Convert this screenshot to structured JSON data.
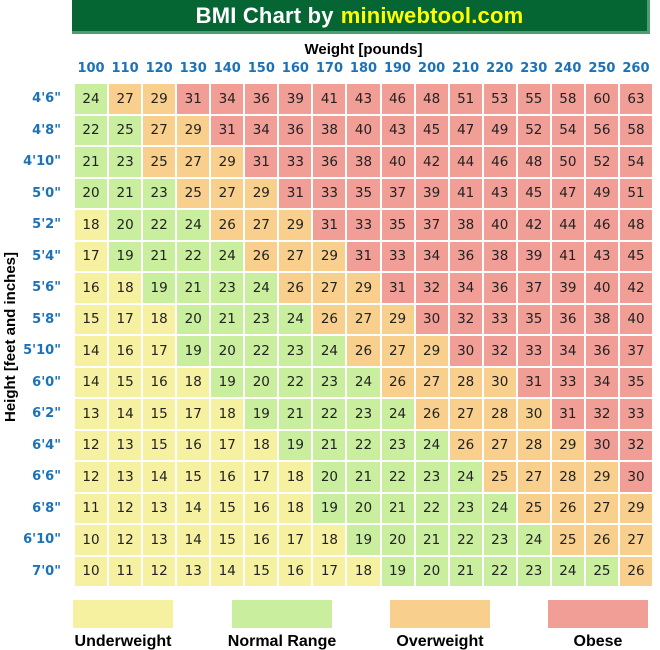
{
  "title": {
    "prefix": "BMI Chart by",
    "brand": "miniwebtool.com"
  },
  "axes": {
    "x_title": "Weight [pounds]",
    "y_title": "Height [feet and inches]"
  },
  "colors": {
    "title_bg": "#066633",
    "title_edge": "#4f9c74",
    "title_text": "#ffffff",
    "brand_text": "#ffff00",
    "header_text": "#1b72b8",
    "cell_text": "#222222"
  },
  "chart_data": {
    "type": "heatmap",
    "title": "BMI Chart by miniwebtool.com",
    "x_title": "Weight [pounds]",
    "y_title": "Height [feet and inches]",
    "columns": [
      100,
      110,
      120,
      130,
      140,
      150,
      160,
      170,
      180,
      190,
      200,
      210,
      220,
      230,
      240,
      250,
      260
    ],
    "rows": [
      "4'6\"",
      "4'8\"",
      "4'10\"",
      "5'0\"",
      "5'2\"",
      "5'4\"",
      "5'6\"",
      "5'8\"",
      "5'10\"",
      "6'0\"",
      "6'2\"",
      "6'4\"",
      "6'6\"",
      "6'8\"",
      "6'10\"",
      "7'0\""
    ],
    "values": [
      [
        24,
        27,
        29,
        31,
        34,
        36,
        39,
        41,
        43,
        46,
        48,
        51,
        53,
        55,
        58,
        60,
        63
      ],
      [
        22,
        25,
        27,
        29,
        31,
        34,
        36,
        38,
        40,
        43,
        45,
        47,
        49,
        52,
        54,
        56,
        58
      ],
      [
        21,
        23,
        25,
        27,
        29,
        31,
        33,
        36,
        38,
        40,
        42,
        44,
        46,
        48,
        50,
        52,
        54
      ],
      [
        20,
        21,
        23,
        25,
        27,
        29,
        31,
        33,
        35,
        37,
        39,
        41,
        43,
        45,
        47,
        49,
        51
      ],
      [
        18,
        20,
        22,
        24,
        26,
        27,
        29,
        31,
        33,
        35,
        37,
        38,
        40,
        42,
        44,
        46,
        48
      ],
      [
        17,
        19,
        21,
        22,
        24,
        26,
        27,
        29,
        31,
        33,
        34,
        36,
        38,
        39,
        41,
        43,
        45
      ],
      [
        16,
        18,
        19,
        21,
        23,
        24,
        26,
        27,
        29,
        31,
        32,
        34,
        36,
        37,
        39,
        40,
        42
      ],
      [
        15,
        17,
        18,
        20,
        21,
        23,
        24,
        26,
        27,
        29,
        30,
        32,
        33,
        35,
        36,
        38,
        40
      ],
      [
        14,
        16,
        17,
        19,
        20,
        22,
        23,
        24,
        26,
        27,
        29,
        30,
        32,
        33,
        34,
        36,
        37
      ],
      [
        14,
        15,
        16,
        18,
        19,
        20,
        22,
        23,
        24,
        26,
        27,
        28,
        30,
        31,
        33,
        34,
        35
      ],
      [
        13,
        14,
        15,
        17,
        18,
        19,
        21,
        22,
        23,
        24,
        26,
        27,
        28,
        30,
        31,
        32,
        33
      ],
      [
        12,
        13,
        15,
        16,
        17,
        18,
        19,
        21,
        22,
        23,
        24,
        26,
        27,
        28,
        29,
        30,
        32
      ],
      [
        12,
        13,
        14,
        15,
        16,
        17,
        18,
        20,
        21,
        22,
        23,
        24,
        25,
        27,
        28,
        29,
        30
      ],
      [
        11,
        12,
        13,
        14,
        15,
        16,
        18,
        19,
        20,
        21,
        22,
        23,
        24,
        25,
        26,
        27,
        29
      ],
      [
        10,
        12,
        13,
        14,
        15,
        16,
        17,
        18,
        19,
        20,
        21,
        22,
        23,
        24,
        25,
        26,
        27
      ],
      [
        10,
        11,
        12,
        13,
        14,
        15,
        16,
        17,
        18,
        19,
        20,
        21,
        22,
        23,
        24,
        25,
        26
      ]
    ],
    "cell_categories": [
      "noobbbbbbbbbbbbbb",
      "nnoobbbbbbbbbbbbb",
      "nnooobbbbbbbbbbbb",
      "nnnooobbbbbbbbbbb",
      "unnnooobbbbbbbbbb",
      "unnnnooobbbbbbbbb",
      "uunnnnooobbbbbbbb",
      "uuunnnnooobbbbbbb",
      "uuunnnnnooobbbbbb",
      "uuuunnnnnoooobbbb",
      "uuuuunnnnnoooobbb",
      "uuuuuunnnnnoooobb",
      "uuuuuuunnnnnoooob",
      "uuuuuuunnnnnnoooo",
      "uuuuuuuunnnnnnooo",
      "uuuuuuuuunnnnnnno"
    ],
    "category_colors": {
      "u": "#f6f1a1",
      "n": "#c9ee9e",
      "o": "#f8cf8c",
      "b": "#f19e96"
    },
    "legend": [
      {
        "label": "Underweight",
        "category": "u"
      },
      {
        "label": "Normal Range",
        "category": "n"
      },
      {
        "label": "Overweight",
        "category": "o"
      },
      {
        "label": "Obese",
        "category": "b"
      }
    ]
  }
}
